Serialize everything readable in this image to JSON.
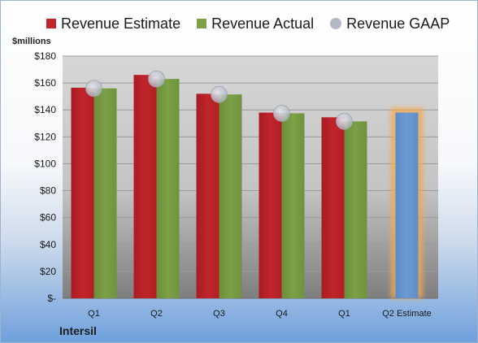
{
  "legend": {
    "estimate": "Revenue Estimate",
    "actual": "Revenue Actual",
    "gaap": "Revenue GAAP"
  },
  "units_label": "$millions",
  "company": "Intersil",
  "colors": {
    "estimate": "#c0252b",
    "actual": "#7ba046",
    "gaap": "#b4b8c4",
    "q2_estimate": "#6b9bd2",
    "q2_glow": "#f5a84a",
    "plot_top": "#d6d6d6",
    "plot_bottom": "#7e7e7e"
  },
  "chart_data": {
    "type": "bar",
    "categories": [
      "Q1",
      "Q2",
      "Q3",
      "Q4",
      "Q1",
      "Q2 Estimate"
    ],
    "series": [
      {
        "name": "Revenue Estimate",
        "values": [
          156.5,
          166,
          152,
          138,
          134.5,
          138
        ]
      },
      {
        "name": "Revenue Actual",
        "values": [
          156,
          163,
          151.5,
          137.5,
          131.5,
          null
        ]
      },
      {
        "name": "Revenue GAAP",
        "values": [
          156,
          163,
          151.5,
          137.5,
          131.5,
          null
        ]
      }
    ],
    "ylabel": "$millions",
    "ylim": [
      0,
      180
    ],
    "y_ticks": [
      "$-",
      "$20",
      "$40",
      "$60",
      "$80",
      "$100",
      "$120",
      "$140",
      "$160",
      "$180"
    ],
    "grid": true,
    "legend_position": "top"
  }
}
